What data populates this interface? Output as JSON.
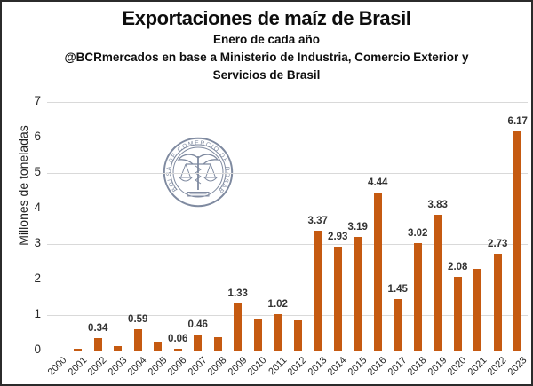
{
  "header": {
    "title": "Exportaciones de maíz de Brasil",
    "subtitle": "Enero de cada año",
    "attribution_line1": "@BCRmercados en base a Ministerio de Industria, Comercio Exterior y",
    "attribution_line2": "Servicios de Brasil"
  },
  "watermark": {
    "ring_text": "BOLSA DE COMERCIO DE ROSARIO"
  },
  "chart_data": {
    "type": "bar",
    "title": "Exportaciones de maíz de Brasil",
    "subtitle": "Enero de cada año",
    "source": "@BCRmercados en base a Ministerio de Industria, Comercio Exterior y Servicios de Brasil",
    "ylabel": "Millones de toneladas",
    "xlabel": "",
    "ylim": [
      0,
      7
    ],
    "yticks": [
      0,
      1,
      2,
      3,
      4,
      5,
      6,
      7
    ],
    "grid": true,
    "legend": false,
    "bar_color": "#C55A11",
    "gridline_color": "#d9d9d9",
    "categories": [
      "2000",
      "2001",
      "2002",
      "2003",
      "2004",
      "2005",
      "2006",
      "2007",
      "2008",
      "2009",
      "2010",
      "2011",
      "2012",
      "2013",
      "2014",
      "2015",
      "2016",
      "2017",
      "2018",
      "2019",
      "2020",
      "2021",
      "2022",
      "2023"
    ],
    "values": [
      0.01,
      0.05,
      0.34,
      0.13,
      0.59,
      0.26,
      0.06,
      0.46,
      0.38,
      1.33,
      0.88,
      1.02,
      0.84,
      3.37,
      2.93,
      3.19,
      4.44,
      1.45,
      3.02,
      3.83,
      2.08,
      2.3,
      2.73,
      6.17
    ],
    "data_labels": [
      null,
      null,
      "0.34",
      null,
      "0.59",
      null,
      "0.06",
      "0.46",
      null,
      "1.33",
      null,
      "1.02",
      null,
      "3.37",
      "2.93",
      "3.19",
      "4.44",
      "1.45",
      "3.02",
      "3.83",
      "2.08",
      null,
      "2.73",
      "6.17"
    ]
  }
}
